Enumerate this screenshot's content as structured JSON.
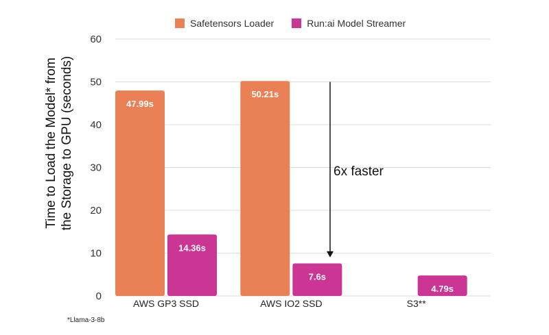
{
  "chart_data": {
    "type": "bar",
    "categories": [
      "AWS GP3 SSD",
      "AWS IO2 SSD",
      "S3**"
    ],
    "series": [
      {
        "name": "Safetensors Loader",
        "color": "#ea8056",
        "values": [
          47.99,
          50.21,
          null
        ],
        "labels": [
          "47.99s",
          "50.21s",
          ""
        ]
      },
      {
        "name": "Run:ai Model Streamer",
        "color": "#cb3593",
        "values": [
          14.36,
          7.6,
          4.79
        ],
        "labels": [
          "14.36s",
          "7.6s",
          "4.79s"
        ]
      }
    ],
    "ylabel_line1": "Time to Load the Model* from",
    "ylabel_line2": "the Storage to GPU (seconds)",
    "ylim": [
      0,
      60
    ],
    "yticks": [
      0,
      10,
      20,
      30,
      40,
      50,
      60
    ],
    "grid": true,
    "legend_position": "top",
    "annotation": {
      "text": "6x faster",
      "from": 50,
      "to": 9
    },
    "footnote": "*Llama-3-8b"
  }
}
